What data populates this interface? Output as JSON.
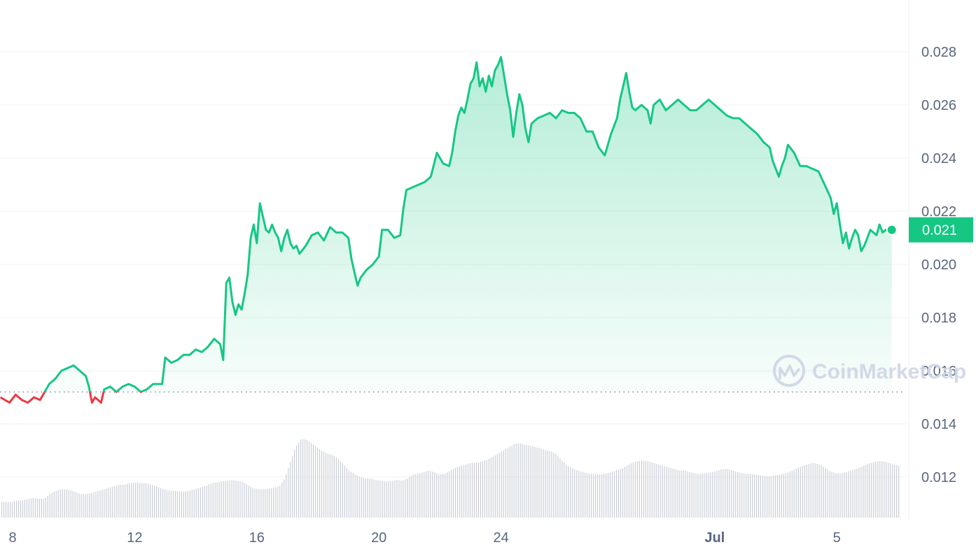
{
  "chart_data": {
    "type": "line",
    "baseline": 0.0152,
    "ylim": [
      0.0112,
      0.0298
    ],
    "y_ticks": [
      "0.028",
      "0.026",
      "0.024",
      "0.022",
      "0.020",
      "0.018",
      "0.016",
      "0.014",
      "0.012"
    ],
    "x_ticks": [
      {
        "label": "8",
        "day": 8,
        "bold": false
      },
      {
        "label": "12",
        "day": 12,
        "bold": false
      },
      {
        "label": "16",
        "day": 16,
        "bold": false
      },
      {
        "label": "20",
        "day": 20,
        "bold": false
      },
      {
        "label": "24",
        "day": 24,
        "bold": false
      },
      {
        "label": "Jul",
        "day": 31,
        "bold": true
      },
      {
        "label": "5",
        "day": 35,
        "bold": false
      }
    ],
    "xlim": [
      7.6,
      37.6
    ],
    "current_price": "0.021",
    "current_value": 0.0213,
    "watermark": "CoinMarketCap",
    "colors": {
      "up": "#16c784",
      "down": "#ea3943",
      "axis_text": "#58667e",
      "grid": "#eff2f5",
      "volume": "#c9ced6"
    },
    "series": [
      {
        "values": [
          [
            7.6,
            0.015
          ],
          [
            7.9,
            0.0148
          ],
          [
            8.1,
            0.0151
          ],
          [
            8.3,
            0.0149
          ],
          [
            8.5,
            0.0148
          ],
          [
            8.7,
            0.015
          ],
          [
            8.9,
            0.0149
          ],
          [
            9.0,
            0.0151
          ],
          [
            9.2,
            0.0155
          ],
          [
            9.4,
            0.0157
          ],
          [
            9.6,
            0.016
          ],
          [
            9.8,
            0.0161
          ],
          [
            10.0,
            0.0162
          ],
          [
            10.2,
            0.016
          ],
          [
            10.4,
            0.0158
          ],
          [
            10.5,
            0.0154
          ],
          [
            10.6,
            0.0148
          ],
          [
            10.7,
            0.015
          ],
          [
            10.9,
            0.0148
          ],
          [
            11.0,
            0.0153
          ],
          [
            11.2,
            0.0154
          ],
          [
            11.4,
            0.0152
          ],
          [
            11.6,
            0.0154
          ],
          [
            11.8,
            0.0155
          ],
          [
            12.0,
            0.0154
          ],
          [
            12.2,
            0.0152
          ],
          [
            12.4,
            0.0153
          ],
          [
            12.6,
            0.0155
          ],
          [
            12.9,
            0.0155
          ],
          [
            13.0,
            0.0165
          ],
          [
            13.2,
            0.0163
          ],
          [
            13.4,
            0.0164
          ],
          [
            13.6,
            0.0166
          ],
          [
            13.8,
            0.0166
          ],
          [
            14.0,
            0.0168
          ],
          [
            14.2,
            0.0167
          ],
          [
            14.4,
            0.0169
          ],
          [
            14.6,
            0.0172
          ],
          [
            14.8,
            0.017
          ],
          [
            14.9,
            0.0164
          ],
          [
            15.0,
            0.0193
          ],
          [
            15.1,
            0.0195
          ],
          [
            15.2,
            0.0186
          ],
          [
            15.3,
            0.0181
          ],
          [
            15.4,
            0.0185
          ],
          [
            15.5,
            0.0183
          ],
          [
            15.6,
            0.0189
          ],
          [
            15.7,
            0.0196
          ],
          [
            15.8,
            0.021
          ],
          [
            15.9,
            0.0215
          ],
          [
            16.0,
            0.0208
          ],
          [
            16.1,
            0.0223
          ],
          [
            16.2,
            0.0218
          ],
          [
            16.3,
            0.0213
          ],
          [
            16.4,
            0.0212
          ],
          [
            16.5,
            0.0215
          ],
          [
            16.6,
            0.0212
          ],
          [
            16.7,
            0.021
          ],
          [
            16.8,
            0.0205
          ],
          [
            16.9,
            0.021
          ],
          [
            17.0,
            0.0213
          ],
          [
            17.1,
            0.0208
          ],
          [
            17.2,
            0.0206
          ],
          [
            17.3,
            0.0207
          ],
          [
            17.4,
            0.0204
          ],
          [
            17.6,
            0.0207
          ],
          [
            17.8,
            0.0211
          ],
          [
            18.0,
            0.0212
          ],
          [
            18.2,
            0.0209
          ],
          [
            18.4,
            0.0214
          ],
          [
            18.6,
            0.0212
          ],
          [
            18.8,
            0.0212
          ],
          [
            19.0,
            0.021
          ],
          [
            19.1,
            0.0202
          ],
          [
            19.2,
            0.0197
          ],
          [
            19.3,
            0.0192
          ],
          [
            19.4,
            0.0195
          ],
          [
            19.6,
            0.0198
          ],
          [
            19.8,
            0.02
          ],
          [
            20.0,
            0.0203
          ],
          [
            20.1,
            0.0213
          ],
          [
            20.3,
            0.0213
          ],
          [
            20.5,
            0.021
          ],
          [
            20.7,
            0.0211
          ],
          [
            20.8,
            0.0221
          ],
          [
            20.9,
            0.0228
          ],
          [
            21.1,
            0.0229
          ],
          [
            21.3,
            0.023
          ],
          [
            21.5,
            0.0231
          ],
          [
            21.7,
            0.0233
          ],
          [
            21.9,
            0.0242
          ],
          [
            22.1,
            0.0238
          ],
          [
            22.3,
            0.0237
          ],
          [
            22.4,
            0.0242
          ],
          [
            22.5,
            0.025
          ],
          [
            22.6,
            0.0256
          ],
          [
            22.7,
            0.0259
          ],
          [
            22.8,
            0.0257
          ],
          [
            22.9,
            0.0262
          ],
          [
            23.0,
            0.0268
          ],
          [
            23.1,
            0.027
          ],
          [
            23.2,
            0.0276
          ],
          [
            23.3,
            0.0267
          ],
          [
            23.4,
            0.027
          ],
          [
            23.5,
            0.0265
          ],
          [
            23.6,
            0.0271
          ],
          [
            23.7,
            0.0267
          ],
          [
            23.8,
            0.0273
          ],
          [
            23.9,
            0.0275
          ],
          [
            24.0,
            0.0278
          ],
          [
            24.1,
            0.0271
          ],
          [
            24.2,
            0.0264
          ],
          [
            24.3,
            0.0258
          ],
          [
            24.4,
            0.0248
          ],
          [
            24.5,
            0.0257
          ],
          [
            24.6,
            0.0264
          ],
          [
            24.7,
            0.026
          ],
          [
            24.8,
            0.0251
          ],
          [
            24.9,
            0.0246
          ],
          [
            25.0,
            0.0253
          ],
          [
            25.2,
            0.0255
          ],
          [
            25.4,
            0.0256
          ],
          [
            25.6,
            0.0257
          ],
          [
            25.8,
            0.0255
          ],
          [
            26.0,
            0.0258
          ],
          [
            26.2,
            0.0257
          ],
          [
            26.4,
            0.0257
          ],
          [
            26.6,
            0.0255
          ],
          [
            26.8,
            0.025
          ],
          [
            27.0,
            0.025
          ],
          [
            27.2,
            0.0244
          ],
          [
            27.4,
            0.0241
          ],
          [
            27.6,
            0.0249
          ],
          [
            27.8,
            0.0255
          ],
          [
            27.9,
            0.0262
          ],
          [
            28.0,
            0.0267
          ],
          [
            28.1,
            0.0272
          ],
          [
            28.2,
            0.0265
          ],
          [
            28.3,
            0.0259
          ],
          [
            28.4,
            0.0258
          ],
          [
            28.6,
            0.026
          ],
          [
            28.8,
            0.0258
          ],
          [
            28.9,
            0.0253
          ],
          [
            29.0,
            0.026
          ],
          [
            29.2,
            0.0262
          ],
          [
            29.4,
            0.0258
          ],
          [
            29.6,
            0.026
          ],
          [
            29.8,
            0.0262
          ],
          [
            30.0,
            0.026
          ],
          [
            30.2,
            0.0258
          ],
          [
            30.4,
            0.0258
          ],
          [
            30.6,
            0.026
          ],
          [
            30.8,
            0.0262
          ],
          [
            31.0,
            0.026
          ],
          [
            31.2,
            0.0258
          ],
          [
            31.4,
            0.0256
          ],
          [
            31.6,
            0.0255
          ],
          [
            31.8,
            0.0255
          ],
          [
            32.0,
            0.0253
          ],
          [
            32.2,
            0.0251
          ],
          [
            32.4,
            0.0249
          ],
          [
            32.6,
            0.0246
          ],
          [
            32.8,
            0.0244
          ],
          [
            32.9,
            0.0239
          ],
          [
            33.0,
            0.0236
          ],
          [
            33.1,
            0.0233
          ],
          [
            33.2,
            0.0237
          ],
          [
            33.3,
            0.024
          ],
          [
            33.4,
            0.0245
          ],
          [
            33.6,
            0.0242
          ],
          [
            33.8,
            0.0237
          ],
          [
            34.0,
            0.0237
          ],
          [
            34.2,
            0.0236
          ],
          [
            34.4,
            0.0235
          ],
          [
            34.6,
            0.023
          ],
          [
            34.8,
            0.0225
          ],
          [
            34.9,
            0.0219
          ],
          [
            35.0,
            0.0223
          ],
          [
            35.1,
            0.0215
          ],
          [
            35.2,
            0.0208
          ],
          [
            35.3,
            0.0212
          ],
          [
            35.4,
            0.0206
          ],
          [
            35.5,
            0.021
          ],
          [
            35.6,
            0.0213
          ],
          [
            35.7,
            0.0211
          ],
          [
            35.8,
            0.0205
          ],
          [
            35.9,
            0.0207
          ],
          [
            36.0,
            0.021
          ],
          [
            36.1,
            0.0213
          ],
          [
            36.2,
            0.0212
          ],
          [
            36.3,
            0.0211
          ],
          [
            36.4,
            0.0215
          ],
          [
            36.5,
            0.0212
          ],
          [
            36.6,
            0.0213
          ],
          [
            36.7,
            0.0212
          ],
          [
            36.8,
            0.0213
          ]
        ]
      }
    ],
    "volume": [
      0.2,
      0.2,
      0.2,
      0.22,
      0.22,
      0.24,
      0.25,
      0.24,
      0.24,
      0.3,
      0.34,
      0.36,
      0.36,
      0.35,
      0.32,
      0.3,
      0.3,
      0.32,
      0.34,
      0.36,
      0.38,
      0.4,
      0.42,
      0.42,
      0.44,
      0.45,
      0.44,
      0.44,
      0.42,
      0.4,
      0.37,
      0.35,
      0.34,
      0.34,
      0.33,
      0.34,
      0.36,
      0.38,
      0.4,
      0.43,
      0.45,
      0.46,
      0.47,
      0.48,
      0.47,
      0.46,
      0.42,
      0.38,
      0.36,
      0.36,
      0.37,
      0.38,
      0.4,
      0.5,
      0.7,
      0.9,
      1.0,
      1.0,
      0.95,
      0.9,
      0.85,
      0.82,
      0.8,
      0.75,
      0.68,
      0.6,
      0.56,
      0.52,
      0.5,
      0.5,
      0.48,
      0.47,
      0.46,
      0.47,
      0.48,
      0.47,
      0.5,
      0.55,
      0.56,
      0.58,
      0.6,
      0.58,
      0.55,
      0.56,
      0.6,
      0.64,
      0.66,
      0.68,
      0.7,
      0.7,
      0.72,
      0.74,
      0.78,
      0.82,
      0.86,
      0.9,
      0.94,
      0.95,
      0.93,
      0.92,
      0.9,
      0.88,
      0.86,
      0.84,
      0.8,
      0.72,
      0.66,
      0.62,
      0.6,
      0.58,
      0.56,
      0.56,
      0.55,
      0.56,
      0.58,
      0.6,
      0.62,
      0.66,
      0.7,
      0.72,
      0.73,
      0.72,
      0.7,
      0.68,
      0.66,
      0.64,
      0.62,
      0.6,
      0.6,
      0.58,
      0.56,
      0.56,
      0.57,
      0.58,
      0.6,
      0.62,
      0.62,
      0.6,
      0.58,
      0.56,
      0.56,
      0.55,
      0.54,
      0.53,
      0.53,
      0.54,
      0.55,
      0.57,
      0.6,
      0.63,
      0.66,
      0.68,
      0.7,
      0.68,
      0.65,
      0.6,
      0.57,
      0.56,
      0.58,
      0.6,
      0.62,
      0.65,
      0.68,
      0.7,
      0.72,
      0.72,
      0.7,
      0.68,
      0.66
    ]
  }
}
